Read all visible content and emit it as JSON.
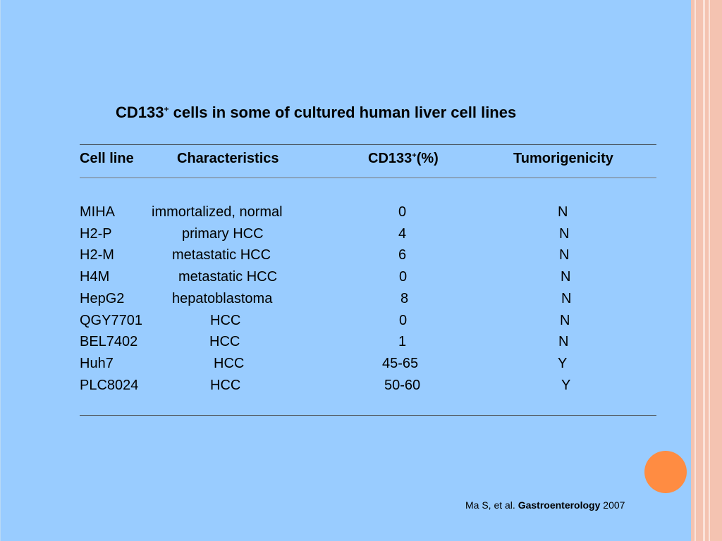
{
  "title": {
    "prefix": "CD133",
    "superscript": "+",
    "suffix": " cells in some of cultured human liver cell lines"
  },
  "table": {
    "headers": {
      "cell_line": "Cell line",
      "characteristics": "Characteristics",
      "cd133_prefix": "CD133",
      "cd133_sup": "+",
      "cd133_suffix": "(%)",
      "tumorigenicity": "Tumorigenicity"
    },
    "rows": [
      {
        "cell_line": "MIHA",
        "characteristics": "immortalized, normal",
        "cd133": "0",
        "tumorigenicity": "N"
      },
      {
        "cell_line": "H2-P",
        "characteristics": "primary HCC",
        "cd133": "4",
        "tumorigenicity": "N"
      },
      {
        "cell_line": "H2-M",
        "characteristics": "metastatic HCC",
        "cd133": "6",
        "tumorigenicity": "N"
      },
      {
        "cell_line": "H4M",
        "characteristics": "metastatic HCC",
        "cd133": "0",
        "tumorigenicity": "N"
      },
      {
        "cell_line": "HepG2",
        "characteristics": "hepatoblastoma",
        "cd133": "8",
        "tumorigenicity": "N"
      },
      {
        "cell_line": "QGY7701",
        "characteristics": "HCC",
        "cd133": "0",
        "tumorigenicity": "N"
      },
      {
        "cell_line": "BEL7402",
        "characteristics": "HCC",
        "cd133": "1",
        "tumorigenicity": "N"
      },
      {
        "cell_line": "Huh7",
        "characteristics": "HCC",
        "cd133": "45-65",
        "tumorigenicity": "Y"
      },
      {
        "cell_line": "PLC8024",
        "characteristics": "HCC",
        "cd133": "50-60",
        "tumorigenicity": "Y"
      }
    ]
  },
  "citation": {
    "authors": "Ma S, et al. ",
    "journal": "Gastroenterology",
    "year": " 2007"
  },
  "colors": {
    "background": "#99ccff",
    "border": "#f4c3b1",
    "accent_dot": "#ff8c42"
  }
}
